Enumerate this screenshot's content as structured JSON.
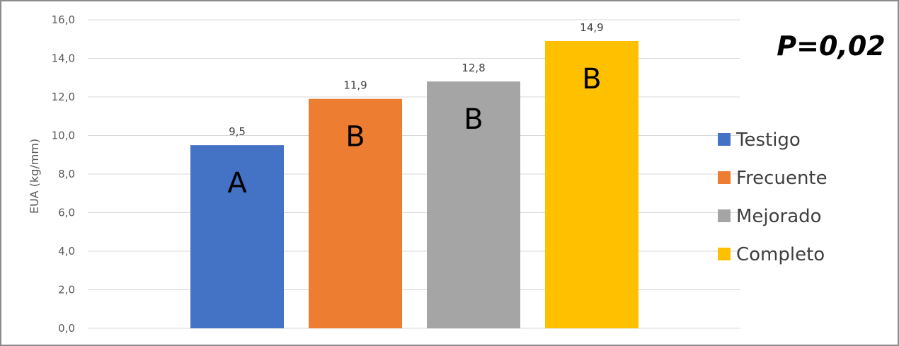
{
  "chart_data": {
    "type": "bar",
    "categories": [
      "Testigo",
      "Frecuente",
      "Mejorado",
      "Completo"
    ],
    "values": [
      9.5,
      11.9,
      12.8,
      14.9
    ],
    "data_labels": [
      "9,5",
      "11,9",
      "12,8",
      "14,9"
    ],
    "significance_letters": [
      "A",
      "B",
      "B",
      "B"
    ],
    "colors": [
      "#4472C4",
      "#ED7D31",
      "#A5A5A5",
      "#FFC000"
    ],
    "ylabel": "EUA (kg/mm)",
    "ylim": [
      0,
      16
    ],
    "yticks": [
      0,
      2,
      4,
      6,
      8,
      10,
      12,
      14,
      16
    ],
    "ytick_labels": [
      "0,0",
      "2,0",
      "4,0",
      "6,0",
      "8,0",
      "10,0",
      "12,0",
      "14,0",
      "16,0"
    ],
    "grid": true,
    "legend": {
      "placement": "right",
      "entries": [
        "Testigo",
        "Frecuente",
        "Mejorado",
        "Completo"
      ]
    },
    "annotation": "P=0,02"
  }
}
